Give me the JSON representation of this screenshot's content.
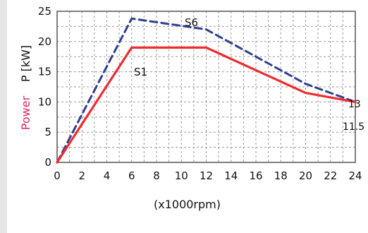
{
  "chart_data": {
    "type": "line",
    "xlabel": "(x1000rpm)",
    "ylabel": {
      "part1": "Power",
      "part2": "P [kW]"
    },
    "xlim": [
      0,
      24
    ],
    "ylim": [
      0,
      25
    ],
    "xticks": [
      0,
      2,
      4,
      6,
      8,
      10,
      12,
      14,
      16,
      18,
      20,
      22,
      24
    ],
    "yticks": [
      0,
      5,
      10,
      15,
      20,
      25
    ],
    "grid": true,
    "series": [
      {
        "name": "S6",
        "x": [
          0,
          6,
          12,
          20,
          24
        ],
        "y": [
          0,
          23.8,
          22,
          13,
          10
        ],
        "color": "#2f3f8f",
        "style": "dashed"
      },
      {
        "name": "S1",
        "x": [
          0,
          6,
          12,
          20,
          24
        ],
        "y": [
          0,
          19,
          19,
          11.5,
          10
        ],
        "color": "#ee2b32",
        "style": "solid"
      }
    ],
    "annotations": [
      "13",
      "11.5"
    ],
    "colors": {
      "power_label": "#e3245f",
      "axis_text": "#111111",
      "grid": "#9a9a9a"
    }
  }
}
